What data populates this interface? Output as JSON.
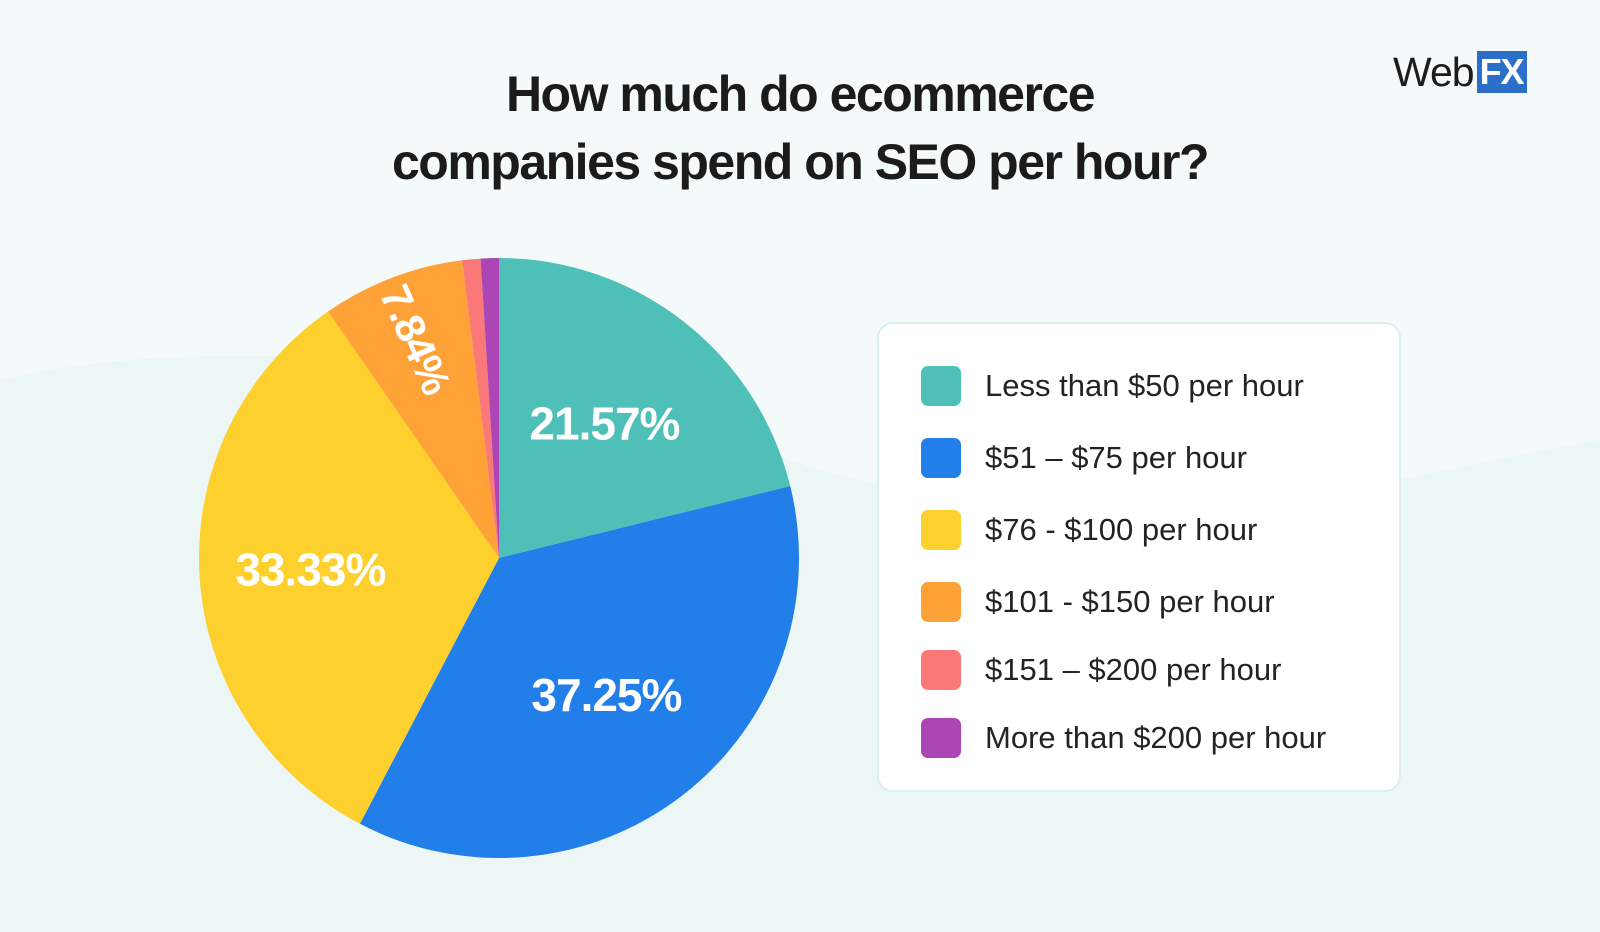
{
  "title_lines": [
    "How much do ecommerce",
    "companies spend on SEO per hour?"
  ],
  "brand": {
    "text": "Web",
    "highlight": "FX",
    "highlight_color": "#2b6fc9"
  },
  "chart_data": {
    "type": "pie",
    "title": "How much do ecommerce companies spend on SEO per hour?",
    "start_angle_deg": 0,
    "direction": "clockwise",
    "legend_position": "right",
    "slices": [
      {
        "label": "Less than $50 per hour",
        "value": 21.57,
        "display": "21.57%",
        "color": "#4fc0b8"
      },
      {
        "label": "$51 – $75 per hour",
        "value": 37.25,
        "display": "37.25%",
        "color": "#227ee9"
      },
      {
        "label": "$76 - $100 per hour",
        "value": 33.33,
        "display": "33.33%",
        "color": "#fed02e"
      },
      {
        "label": "$101 - $150 per hour",
        "value": 7.84,
        "display": "7.84%",
        "color": "#fea136"
      },
      {
        "label": "$151 – $200 per hour",
        "value": 1.0,
        "display": "",
        "color": "#fb7878"
      },
      {
        "label": "More than $200 per hour",
        "value": 1.0,
        "display": "",
        "color": "#ac46b4"
      }
    ]
  }
}
